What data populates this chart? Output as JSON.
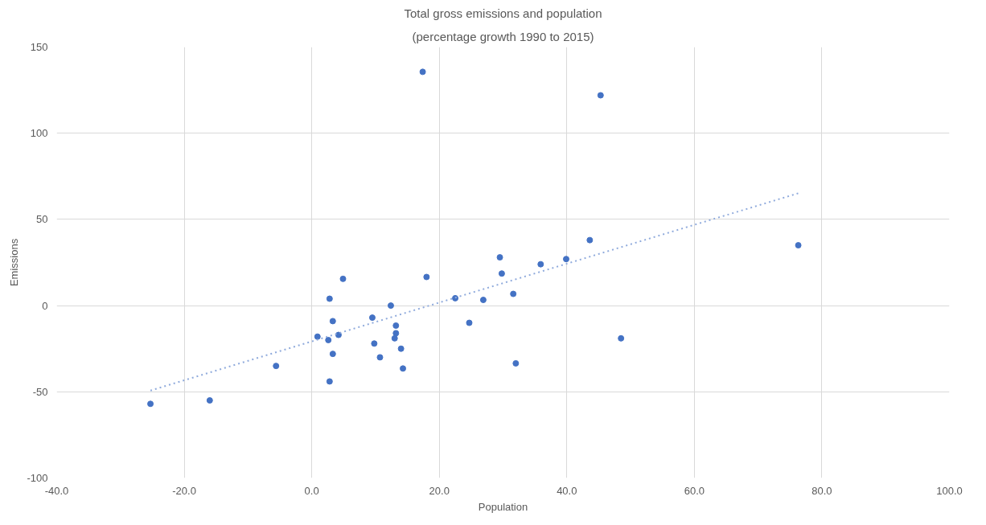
{
  "chart_data": {
    "type": "scatter",
    "title": "Total gross emissions and population",
    "subtitle": "(percentage growth 1990 to 2015)",
    "xlabel": "Population",
    "ylabel": "Emissions",
    "xlim": [
      -40,
      100
    ],
    "ylim": [
      -100,
      150
    ],
    "xticks": [
      {
        "value": -40,
        "label": "-40.0"
      },
      {
        "value": -20,
        "label": "-20.0"
      },
      {
        "value": 0,
        "label": "0.0"
      },
      {
        "value": 20,
        "label": "20.0"
      },
      {
        "value": 40,
        "label": "40.0"
      },
      {
        "value": 60,
        "label": "60.0"
      },
      {
        "value": 80,
        "label": "80.0"
      },
      {
        "value": 100,
        "label": "100.0"
      }
    ],
    "yticks": [
      -100,
      -50,
      0,
      50,
      100,
      150
    ],
    "grid": true,
    "series": [
      {
        "marker": "circle",
        "color": "#4472c4",
        "x": [
          -25.3,
          -16.0,
          -5.6,
          0.9,
          2.6,
          2.8,
          3.3,
          3.3,
          2.8,
          4.2,
          4.9,
          9.5,
          9.8,
          10.7,
          12.4,
          13.2,
          13.2,
          13.0,
          14.0,
          14.3,
          17.4,
          18.0,
          22.5,
          24.7,
          26.9,
          29.5,
          29.8,
          31.6,
          32.0,
          35.9,
          39.9,
          43.6,
          45.3,
          48.5,
          76.3
        ],
        "values": [
          -57,
          -55,
          -35,
          -18,
          -20,
          4,
          -9,
          -28,
          -44,
          -17,
          15.5,
          -7,
          -22,
          -30,
          0,
          -11.6,
          -16,
          -19,
          -25,
          -36.5,
          135.6,
          16.6,
          4.3,
          -10,
          3.3,
          28,
          18.6,
          6.8,
          -33.5,
          24,
          27,
          38,
          122,
          -19,
          35
        ]
      },
      {
        "type": "line",
        "color": "#8faadc",
        "line_style": "dotted",
        "x": [
          -25.3,
          76.3
        ],
        "values": [
          -49.3,
          65.2
        ]
      }
    ]
  }
}
